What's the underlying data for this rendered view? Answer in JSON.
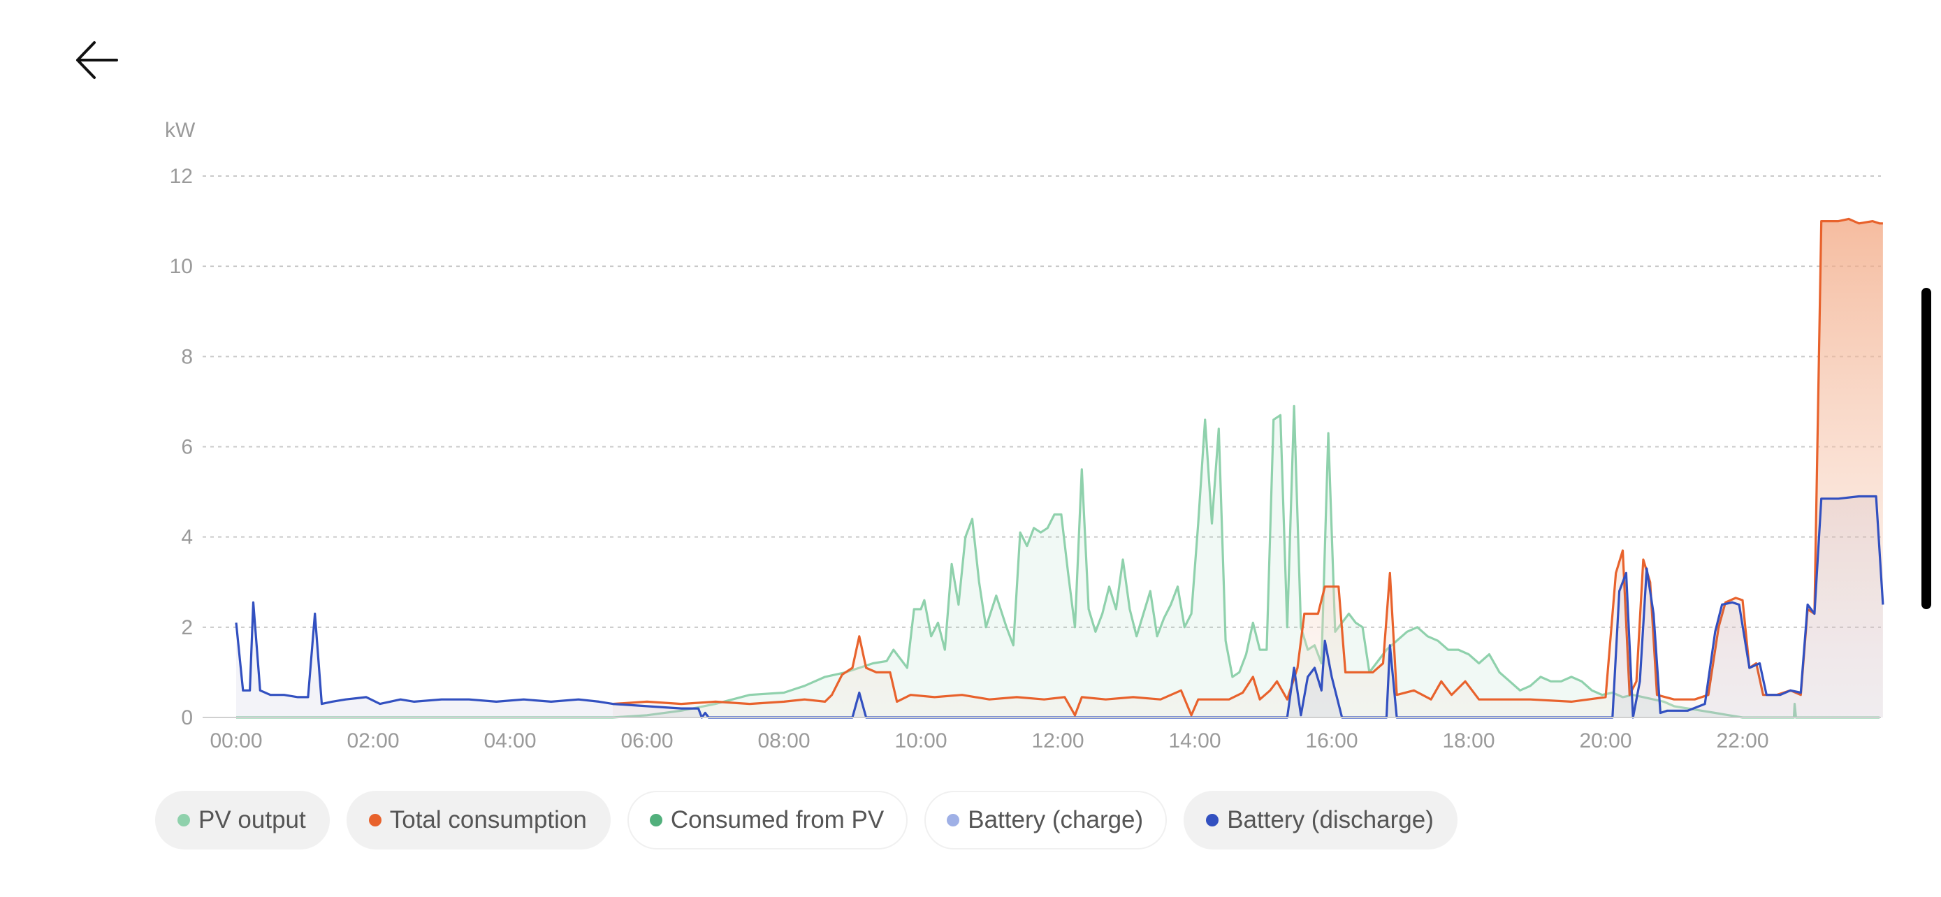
{
  "header": {
    "back_icon": "arrow-left-icon"
  },
  "legend": [
    {
      "label": "PV output",
      "color": "#8fd1ac",
      "active": true
    },
    {
      "label": "Total consumption",
      "color": "#e8622c",
      "active": true
    },
    {
      "label": "Consumed from PV",
      "color": "#52b07c",
      "active": false
    },
    {
      "label": "Battery (charge)",
      "color": "#9fb0e6",
      "active": false
    },
    {
      "label": "Battery (discharge)",
      "color": "#3250c0",
      "active": true
    }
  ],
  "chart_data": {
    "type": "area",
    "title": "",
    "ylabel": "kW",
    "ylim": [
      0,
      12
    ],
    "yticks": [
      0,
      2,
      4,
      6,
      8,
      10,
      12
    ],
    "xlim_hours": [
      0,
      24
    ],
    "xticks": [
      "00:00",
      "02:00",
      "04:00",
      "06:00",
      "08:00",
      "10:00",
      "12:00",
      "14:00",
      "16:00",
      "18:00",
      "20:00",
      "22:00"
    ],
    "grid": true,
    "legend_position": "bottom",
    "series": [
      {
        "name": "PV output",
        "color": "#8fd1ac",
        "fill": "rgba(143,209,172,0.12)",
        "points": [
          [
            0,
            0
          ],
          [
            5.5,
            0
          ],
          [
            6.0,
            0.05
          ],
          [
            6.5,
            0.15
          ],
          [
            7.0,
            0.3
          ],
          [
            7.5,
            0.5
          ],
          [
            8.0,
            0.55
          ],
          [
            8.3,
            0.7
          ],
          [
            8.6,
            0.9
          ],
          [
            8.9,
            1.0
          ],
          [
            9.1,
            1.1
          ],
          [
            9.3,
            1.2
          ],
          [
            9.5,
            1.25
          ],
          [
            9.6,
            1.5
          ],
          [
            9.7,
            1.3
          ],
          [
            9.8,
            1.1
          ],
          [
            9.9,
            2.4
          ],
          [
            10.0,
            2.4
          ],
          [
            10.05,
            2.6
          ],
          [
            10.15,
            1.8
          ],
          [
            10.25,
            2.1
          ],
          [
            10.35,
            1.5
          ],
          [
            10.45,
            3.4
          ],
          [
            10.55,
            2.5
          ],
          [
            10.65,
            4.0
          ],
          [
            10.75,
            4.4
          ],
          [
            10.85,
            3.0
          ],
          [
            10.95,
            2.0
          ],
          [
            11.1,
            2.7
          ],
          [
            11.25,
            2.0
          ],
          [
            11.35,
            1.6
          ],
          [
            11.45,
            4.1
          ],
          [
            11.55,
            3.8
          ],
          [
            11.65,
            4.2
          ],
          [
            11.75,
            4.1
          ],
          [
            11.85,
            4.2
          ],
          [
            11.95,
            4.5
          ],
          [
            12.05,
            4.5
          ],
          [
            12.15,
            3.2
          ],
          [
            12.25,
            2.0
          ],
          [
            12.35,
            5.5
          ],
          [
            12.45,
            2.4
          ],
          [
            12.55,
            1.9
          ],
          [
            12.65,
            2.3
          ],
          [
            12.75,
            2.9
          ],
          [
            12.85,
            2.4
          ],
          [
            12.95,
            3.5
          ],
          [
            13.05,
            2.4
          ],
          [
            13.15,
            1.8
          ],
          [
            13.25,
            2.3
          ],
          [
            13.35,
            2.8
          ],
          [
            13.45,
            1.8
          ],
          [
            13.55,
            2.2
          ],
          [
            13.65,
            2.5
          ],
          [
            13.75,
            2.9
          ],
          [
            13.85,
            2.0
          ],
          [
            13.95,
            2.3
          ],
          [
            14.05,
            4.3
          ],
          [
            14.15,
            6.6
          ],
          [
            14.25,
            4.3
          ],
          [
            14.35,
            6.4
          ],
          [
            14.45,
            1.7
          ],
          [
            14.55,
            0.9
          ],
          [
            14.65,
            1.0
          ],
          [
            14.75,
            1.4
          ],
          [
            14.85,
            2.1
          ],
          [
            14.95,
            1.5
          ],
          [
            15.05,
            1.5
          ],
          [
            15.15,
            6.6
          ],
          [
            15.25,
            6.7
          ],
          [
            15.35,
            2.0
          ],
          [
            15.45,
            6.9
          ],
          [
            15.55,
            2.0
          ],
          [
            15.65,
            1.5
          ],
          [
            15.75,
            1.6
          ],
          [
            15.85,
            1.2
          ],
          [
            15.95,
            6.3
          ],
          [
            16.05,
            1.9
          ],
          [
            16.15,
            2.1
          ],
          [
            16.25,
            2.3
          ],
          [
            16.35,
            2.1
          ],
          [
            16.45,
            2.0
          ],
          [
            16.55,
            1.0
          ],
          [
            16.65,
            1.2
          ],
          [
            16.8,
            1.5
          ],
          [
            16.95,
            1.7
          ],
          [
            17.1,
            1.9
          ],
          [
            17.25,
            2.0
          ],
          [
            17.4,
            1.8
          ],
          [
            17.55,
            1.7
          ],
          [
            17.7,
            1.5
          ],
          [
            17.85,
            1.5
          ],
          [
            18.0,
            1.4
          ],
          [
            18.15,
            1.2
          ],
          [
            18.3,
            1.4
          ],
          [
            18.45,
            1.0
          ],
          [
            18.6,
            0.8
          ],
          [
            18.75,
            0.6
          ],
          [
            18.9,
            0.7
          ],
          [
            19.05,
            0.9
          ],
          [
            19.2,
            0.8
          ],
          [
            19.35,
            0.8
          ],
          [
            19.5,
            0.9
          ],
          [
            19.65,
            0.8
          ],
          [
            19.8,
            0.6
          ],
          [
            19.95,
            0.5
          ],
          [
            20.1,
            0.55
          ],
          [
            20.25,
            0.45
          ],
          [
            20.4,
            0.5
          ],
          [
            20.55,
            0.45
          ],
          [
            20.7,
            0.4
          ],
          [
            20.85,
            0.35
          ],
          [
            21.0,
            0.25
          ],
          [
            21.2,
            0.2
          ],
          [
            21.4,
            0.15
          ],
          [
            21.6,
            0.1
          ],
          [
            21.8,
            0.05
          ],
          [
            22.0,
            0
          ],
          [
            22.75,
            0
          ],
          [
            22.76,
            0.3
          ],
          [
            22.78,
            0
          ],
          [
            24,
            0
          ]
        ]
      },
      {
        "name": "Total consumption",
        "color": "#e8622c",
        "fill": "rgba(232,98,44,0.07)",
        "points": [
          [
            5.5,
            0.3
          ],
          [
            6.0,
            0.35
          ],
          [
            6.5,
            0.3
          ],
          [
            7.0,
            0.35
          ],
          [
            7.5,
            0.3
          ],
          [
            8.0,
            0.35
          ],
          [
            8.3,
            0.4
          ],
          [
            8.6,
            0.35
          ],
          [
            8.7,
            0.5
          ],
          [
            8.85,
            0.95
          ],
          [
            9.0,
            1.1
          ],
          [
            9.1,
            1.8
          ],
          [
            9.2,
            1.1
          ],
          [
            9.35,
            1.0
          ],
          [
            9.55,
            1.0
          ],
          [
            9.65,
            0.35
          ],
          [
            9.85,
            0.5
          ],
          [
            10.2,
            0.45
          ],
          [
            10.6,
            0.5
          ],
          [
            11.0,
            0.4
          ],
          [
            11.4,
            0.45
          ],
          [
            11.8,
            0.4
          ],
          [
            12.1,
            0.45
          ],
          [
            12.25,
            0.05
          ],
          [
            12.35,
            0.45
          ],
          [
            12.7,
            0.4
          ],
          [
            13.1,
            0.45
          ],
          [
            13.5,
            0.4
          ],
          [
            13.8,
            0.6
          ],
          [
            13.95,
            0.05
          ],
          [
            14.05,
            0.4
          ],
          [
            14.5,
            0.4
          ],
          [
            14.7,
            0.55
          ],
          [
            14.85,
            0.9
          ],
          [
            14.95,
            0.4
          ],
          [
            15.1,
            0.6
          ],
          [
            15.2,
            0.8
          ],
          [
            15.35,
            0.4
          ],
          [
            15.5,
            1.1
          ],
          [
            15.6,
            2.3
          ],
          [
            15.8,
            2.3
          ],
          [
            15.9,
            2.9
          ],
          [
            16.1,
            2.9
          ],
          [
            16.2,
            1.0
          ],
          [
            16.4,
            1.0
          ],
          [
            16.6,
            1.0
          ],
          [
            16.75,
            1.2
          ],
          [
            16.85,
            3.2
          ],
          [
            16.95,
            0.5
          ],
          [
            17.2,
            0.6
          ],
          [
            17.45,
            0.4
          ],
          [
            17.6,
            0.8
          ],
          [
            17.75,
            0.5
          ],
          [
            17.95,
            0.8
          ],
          [
            18.15,
            0.4
          ],
          [
            18.5,
            0.4
          ],
          [
            18.9,
            0.4
          ],
          [
            19.5,
            0.35
          ],
          [
            20.0,
            0.45
          ],
          [
            20.15,
            3.2
          ],
          [
            20.25,
            3.7
          ],
          [
            20.35,
            0.5
          ],
          [
            20.45,
            0.8
          ],
          [
            20.55,
            3.5
          ],
          [
            20.65,
            3.0
          ],
          [
            20.75,
            0.5
          ],
          [
            21.0,
            0.4
          ],
          [
            21.3,
            0.4
          ],
          [
            21.5,
            0.5
          ],
          [
            21.65,
            2.0
          ],
          [
            21.75,
            2.55
          ],
          [
            21.9,
            2.65
          ],
          [
            22.0,
            2.6
          ],
          [
            22.1,
            1.1
          ],
          [
            22.2,
            1.2
          ],
          [
            22.3,
            0.5
          ],
          [
            22.5,
            0.5
          ],
          [
            22.7,
            0.6
          ],
          [
            22.85,
            0.5
          ],
          [
            22.95,
            2.4
          ],
          [
            23.05,
            2.3
          ],
          [
            23.15,
            11.0
          ],
          [
            23.4,
            11.0
          ],
          [
            23.55,
            11.05
          ],
          [
            23.7,
            10.95
          ],
          [
            23.9,
            11.0
          ],
          [
            24.0,
            10.95
          ],
          [
            24.05,
            10.95
          ]
        ]
      },
      {
        "name": "Battery (discharge)",
        "color": "#3250c0",
        "fill": "rgba(90,80,160,0.07)",
        "points": [
          [
            0,
            2.1
          ],
          [
            0.1,
            0.6
          ],
          [
            0.2,
            0.6
          ],
          [
            0.25,
            2.55
          ],
          [
            0.35,
            0.6
          ],
          [
            0.5,
            0.5
          ],
          [
            0.7,
            0.5
          ],
          [
            0.9,
            0.45
          ],
          [
            1.05,
            0.45
          ],
          [
            1.15,
            2.3
          ],
          [
            1.25,
            0.3
          ],
          [
            1.4,
            0.35
          ],
          [
            1.6,
            0.4
          ],
          [
            1.9,
            0.45
          ],
          [
            2.1,
            0.3
          ],
          [
            2.4,
            0.4
          ],
          [
            2.6,
            0.35
          ],
          [
            3.0,
            0.4
          ],
          [
            3.4,
            0.4
          ],
          [
            3.8,
            0.35
          ],
          [
            4.2,
            0.4
          ],
          [
            4.6,
            0.35
          ],
          [
            5.0,
            0.4
          ],
          [
            5.3,
            0.35
          ],
          [
            5.5,
            0.3
          ],
          [
            6.0,
            0.25
          ],
          [
            6.5,
            0.2
          ],
          [
            6.75,
            0.2
          ],
          [
            6.8,
            0
          ],
          [
            6.85,
            0.1
          ],
          [
            6.9,
            0
          ],
          [
            9.0,
            0
          ],
          [
            9.1,
            0.55
          ],
          [
            9.2,
            0
          ],
          [
            15.35,
            0
          ],
          [
            15.45,
            1.1
          ],
          [
            15.55,
            0.05
          ],
          [
            15.65,
            0.9
          ],
          [
            15.75,
            1.1
          ],
          [
            15.85,
            0.6
          ],
          [
            15.9,
            1.7
          ],
          [
            16.0,
            0.9
          ],
          [
            16.15,
            0
          ],
          [
            16.8,
            0
          ],
          [
            16.85,
            1.6
          ],
          [
            16.95,
            0
          ],
          [
            20.1,
            0
          ],
          [
            20.2,
            2.8
          ],
          [
            20.3,
            3.2
          ],
          [
            20.4,
            0
          ],
          [
            20.5,
            0.8
          ],
          [
            20.6,
            3.3
          ],
          [
            20.7,
            2.3
          ],
          [
            20.8,
            0.1
          ],
          [
            20.9,
            0.15
          ],
          [
            21.2,
            0.15
          ],
          [
            21.45,
            0.3
          ],
          [
            21.6,
            1.9
          ],
          [
            21.7,
            2.5
          ],
          [
            21.85,
            2.55
          ],
          [
            21.95,
            2.5
          ],
          [
            22.1,
            1.1
          ],
          [
            22.25,
            1.2
          ],
          [
            22.35,
            0.5
          ],
          [
            22.55,
            0.5
          ],
          [
            22.7,
            0.6
          ],
          [
            22.85,
            0.55
          ],
          [
            22.95,
            2.5
          ],
          [
            23.05,
            2.3
          ],
          [
            23.15,
            4.85
          ],
          [
            23.4,
            4.85
          ],
          [
            23.7,
            4.9
          ],
          [
            23.95,
            4.9
          ],
          [
            24.05,
            2.5
          ]
        ]
      }
    ]
  }
}
